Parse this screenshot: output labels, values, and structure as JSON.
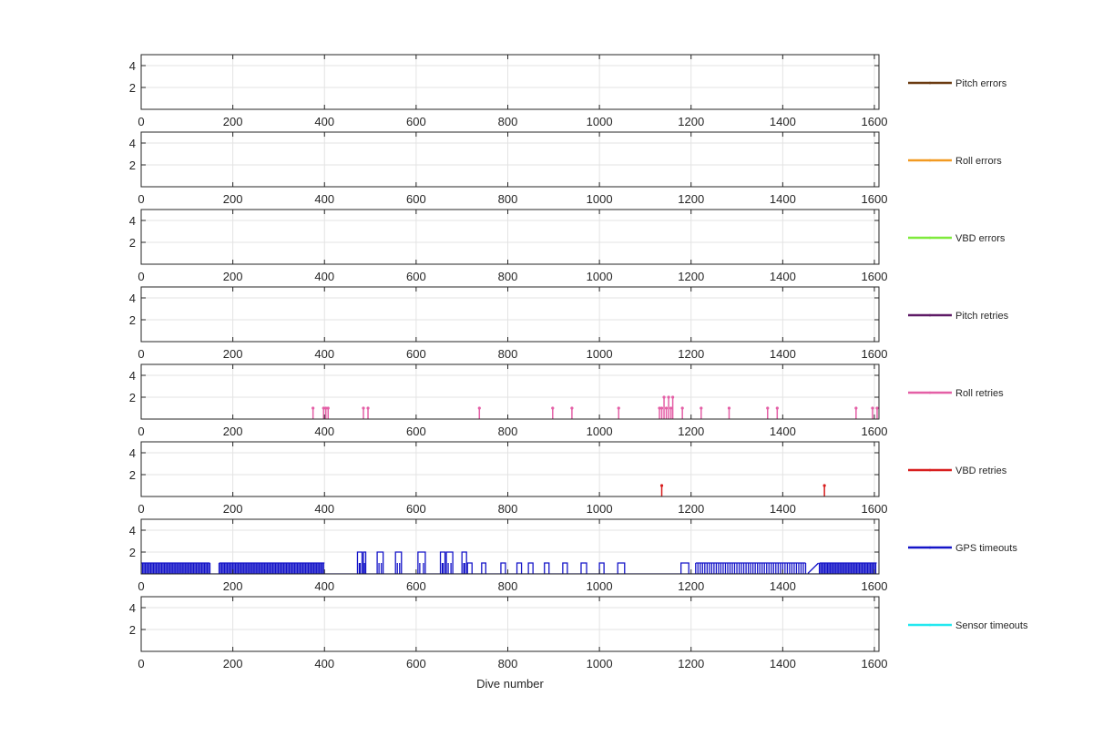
{
  "chart_data": {
    "type": "line",
    "xlabel": "Dive number",
    "xlim": [
      0,
      1610
    ],
    "xticks": [
      0,
      200,
      400,
      600,
      800,
      1000,
      1200,
      1400,
      1600
    ],
    "ylim": [
      0,
      5
    ],
    "yticks": [
      2,
      4
    ],
    "grid": true,
    "legend_placement": "right",
    "series": [
      {
        "name": "Pitch errors",
        "color": "#6b3a10",
        "points": []
      },
      {
        "name": "Roll errors",
        "color": "#f29a22",
        "points": []
      },
      {
        "name": "VBD errors",
        "color": "#7fea3c",
        "points": []
      },
      {
        "name": "Pitch retries",
        "color": "#5e1a66",
        "points": []
      },
      {
        "name": "Roll retries",
        "color": "#e45fa6",
        "points": [
          [
            375,
            1
          ],
          [
            398,
            1
          ],
          [
            403,
            1
          ],
          [
            408,
            1
          ],
          [
            485,
            1
          ],
          [
            495,
            1
          ],
          [
            738,
            1
          ],
          [
            898,
            1
          ],
          [
            940,
            1
          ],
          [
            1042,
            1
          ],
          [
            1131,
            1
          ],
          [
            1136,
            1
          ],
          [
            1141,
            2
          ],
          [
            1146,
            1
          ],
          [
            1151,
            2
          ],
          [
            1156,
            1
          ],
          [
            1160,
            2
          ],
          [
            1181,
            1
          ],
          [
            1222,
            1
          ],
          [
            1283,
            1
          ],
          [
            1367,
            1
          ],
          [
            1388,
            1
          ],
          [
            1560,
            1
          ],
          [
            1596,
            1
          ],
          [
            1606,
            1
          ]
        ]
      },
      {
        "name": "VBD retries",
        "color": "#d81e1e",
        "points": [
          [
            1136,
            1
          ],
          [
            1491,
            1
          ]
        ]
      },
      {
        "name": "GPS timeouts",
        "color": "#1414c8",
        "points": [],
        "segments": [
          {
            "type": "dense",
            "from": 0,
            "to": 150,
            "step": 3,
            "level": 1
          },
          {
            "type": "dense",
            "from": 170,
            "to": 400,
            "step": 3,
            "level": 1
          },
          {
            "type": "steps",
            "bumps": [
              [
                472,
                482,
                2
              ],
              [
                485,
                490,
                2
              ],
              [
                515,
                528,
                2
              ],
              [
                555,
                568,
                2
              ],
              [
                604,
                620,
                2
              ],
              [
                653,
                663,
                2
              ],
              [
                666,
                680,
                2
              ],
              [
                700,
                710,
                2
              ],
              [
                712,
                722,
                1
              ],
              [
                743,
                752,
                1
              ],
              [
                785,
                795,
                1
              ],
              [
                820,
                830,
                1
              ],
              [
                845,
                855,
                1
              ],
              [
                880,
                890,
                1
              ],
              [
                920,
                930,
                1
              ],
              [
                960,
                972,
                1
              ],
              [
                1000,
                1010,
                1
              ],
              [
                1040,
                1055,
                1
              ],
              [
                1178,
                1195,
                1
              ]
            ]
          },
          {
            "type": "dense",
            "from": 1210,
            "to": 1450,
            "step": 5,
            "level": 1
          },
          {
            "type": "dense",
            "from": 1480,
            "to": 1605,
            "step": 3,
            "level": 1
          }
        ]
      },
      {
        "name": "Sensor timeouts",
        "color": "#25e8f0",
        "points": []
      }
    ]
  }
}
